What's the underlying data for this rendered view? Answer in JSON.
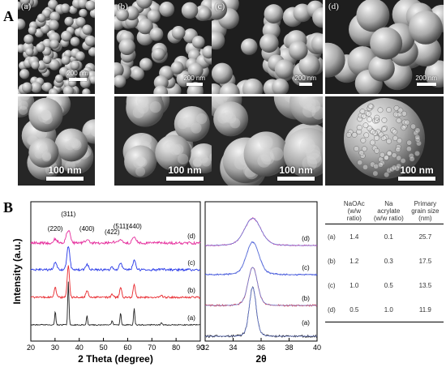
{
  "figure": {
    "panel_a_letter": "A",
    "panel_b_letter": "B",
    "sem_top": [
      {
        "label": "(a)",
        "scale": "200 nm"
      },
      {
        "label": "(b)",
        "scale": "200 nm"
      },
      {
        "label": "(c)",
        "scale": "200 nm"
      },
      {
        "label": "(d)",
        "scale": "200 nm"
      }
    ],
    "sem_bottom": [
      {
        "scale": "100 nm"
      },
      {
        "scale": "100 nm"
      },
      {
        "scale": "100 nm"
      },
      {
        "scale": "100 nm"
      }
    ]
  },
  "colors": {
    "a": "#222222",
    "b": "#e8262b",
    "c": "#2637e8",
    "d": "#e52a9b",
    "fit": "#6b7fd6"
  },
  "chart_data": [
    {
      "type": "line",
      "xlabel": "2 Theta (degree)",
      "ylabel": "Intensity (a.u.)",
      "xlim": [
        20,
        90
      ],
      "xticks": [
        "20",
        "30",
        "40",
        "50",
        "60",
        "70",
        "80",
        "90"
      ],
      "peak_labels": [
        {
          "text": "(220)",
          "x": 30.1
        },
        {
          "text": "(311)",
          "x": 35.5
        },
        {
          "text": "(400)",
          "x": 43.2
        },
        {
          "text": "(422)",
          "x": 53.6
        },
        {
          "text": "(511)",
          "x": 57.1
        },
        {
          "text": "(440)",
          "x": 62.7
        }
      ],
      "peaks": [
        {
          "x": 30.1,
          "rel": 0.3
        },
        {
          "x": 35.5,
          "rel": 1.0
        },
        {
          "x": 43.2,
          "rel": 0.22
        },
        {
          "x": 53.6,
          "rel": 0.09
        },
        {
          "x": 57.1,
          "rel": 0.28
        },
        {
          "x": 62.7,
          "rel": 0.38
        },
        {
          "x": 74.0,
          "rel": 0.05
        }
      ],
      "series": [
        {
          "name": "(a)",
          "key": "a",
          "offset": 0,
          "scale": 1.0,
          "width": 0.25,
          "noise": 0.012
        },
        {
          "name": "(b)",
          "key": "b",
          "offset": 1,
          "scale": 0.75,
          "width": 0.45,
          "noise": 0.02
        },
        {
          "name": "(c)",
          "key": "c",
          "offset": 2,
          "scale": 0.55,
          "width": 0.6,
          "noise": 0.025
        },
        {
          "name": "(d)",
          "key": "d",
          "offset": 3,
          "scale": 0.3,
          "width": 0.8,
          "noise": 0.03
        }
      ]
    },
    {
      "type": "line",
      "xlabel": "2θ",
      "xlim": [
        32,
        40
      ],
      "xticks": [
        "32",
        "34",
        "36",
        "38",
        "40"
      ],
      "series": [
        {
          "name": "(a)",
          "center": 35.4,
          "fwhm": 0.55,
          "offset": 0
        },
        {
          "name": "(b)",
          "center": 35.4,
          "fwhm": 0.75,
          "offset": 1
        },
        {
          "name": "(c)",
          "center": 35.4,
          "fwhm": 1.0,
          "offset": 2
        },
        {
          "name": "(d)",
          "center": 35.4,
          "fwhm": 1.3,
          "offset": 3
        }
      ]
    },
    {
      "type": "table",
      "columns": [
        "",
        "NaOAc (w/w ratio)",
        "Na acrylate (w/w ratio)",
        "Primary grain size (nm)"
      ],
      "rows": [
        [
          "(a)",
          "1.4",
          "0.1",
          "25.7"
        ],
        [
          "(b)",
          "1.2",
          "0.3",
          "17.5"
        ],
        [
          "(c)",
          "1.0",
          "0.5",
          "13.5"
        ],
        [
          "(d)",
          "0.5",
          "1.0",
          "11.9"
        ]
      ]
    }
  ]
}
